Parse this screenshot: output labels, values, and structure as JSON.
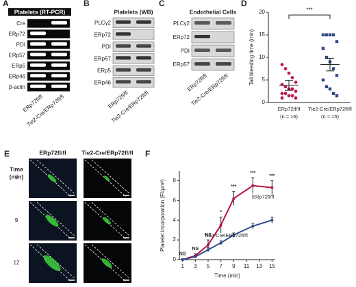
{
  "panels": {
    "A": {
      "label": "A",
      "title": "Platelets (RT-PCR)",
      "rows": [
        "Cre",
        "ERp72",
        "PDI",
        "ERp57",
        "ERp5",
        "ERp46",
        "β-actin"
      ],
      "columns": [
        "ERp72fl/fl",
        "Tie2-Cre/ERp72fl/fl"
      ]
    },
    "B": {
      "label": "B",
      "title": "Platelets (WB)",
      "rows": [
        "PLCγ2",
        "ERp72",
        "PDI",
        "ERp57",
        "ERp5",
        "ERp46"
      ],
      "columns": [
        "ERp72fl/fl",
        "Tie2-Cre/ERp72fl/fl"
      ]
    },
    "C": {
      "label": "C",
      "title": "Endothelial Cells",
      "rows": [
        "PLCγ2",
        "ERp72",
        "PDI",
        "ERp57"
      ],
      "columns": [
        "ERp72fl/fl",
        "Tie2-Cre/ERp72fl/fl"
      ]
    },
    "E": {
      "label": "E",
      "row_header": [
        "Time",
        "(min)"
      ],
      "columns": [
        "ERp72fl/fl",
        "Tie2-Cre/ERp72fl/fl"
      ],
      "rows": [
        "7",
        "9",
        "12"
      ]
    }
  },
  "chart_data": [
    {
      "label": "D",
      "type": "scatter",
      "ylabel": "Tail bleeding time (min)",
      "categories": [
        "ERp72fl/fl",
        "Tie2-Cre/ERp72fl/fl"
      ],
      "category_notes": [
        "(n = 16)",
        "(n = 15)"
      ],
      "series": [
        {
          "color": "#c2185b",
          "values": [
            8.4,
            7.5,
            6.5,
            5.5,
            4.5,
            4,
            3.5,
            3,
            3,
            2.5,
            2,
            2,
            1.5,
            1.5,
            1,
            1
          ]
        },
        {
          "color": "#2c4a86",
          "values": [
            15,
            15,
            15,
            15,
            13.5,
            12,
            10,
            9,
            7.5,
            6,
            5,
            3.5,
            3,
            2,
            1.5
          ]
        }
      ],
      "mean": [
        3.8,
        8.4
      ],
      "sem": [
        1.1,
        1.4
      ],
      "significance": "***",
      "ylim": [
        0,
        20
      ],
      "yticks": [
        0,
        5,
        10,
        15,
        20
      ]
    },
    {
      "label": "F",
      "type": "line",
      "xlabel": "Time (min)",
      "ylabel": "Platelet incorporation (FI/μm²)",
      "x": [
        1,
        3,
        5,
        7,
        9,
        12,
        15
      ],
      "series": [
        {
          "name": "ERp72fl/fl",
          "color": "#b5123d",
          "values": [
            0,
            0.4,
            1.5,
            3.5,
            6.2,
            7.5,
            7.3
          ],
          "errors": [
            0.1,
            0.2,
            0.5,
            0.8,
            0.7,
            0.8,
            0.7
          ]
        },
        {
          "name": "Tie2-Cre/ERp72fl/fl",
          "color": "#2b4c8c",
          "values": [
            0,
            0.3,
            1.0,
            1.7,
            2.5,
            3.4,
            4.0
          ],
          "errors": [
            0.1,
            0.1,
            0.2,
            0.2,
            0.2,
            0.3,
            0.3
          ]
        }
      ],
      "annotations": [
        {
          "x": 1,
          "text": "NS"
        },
        {
          "x": 3,
          "text": "NS"
        },
        {
          "x": 5,
          "text": "NS"
        },
        {
          "x": 7,
          "text": "*"
        },
        {
          "x": 9,
          "text": "***"
        },
        {
          "x": 12,
          "text": "***"
        },
        {
          "x": 15,
          "text": "***"
        }
      ],
      "xlim": [
        0.5,
        15.5
      ],
      "xticks": [
        1,
        3,
        5,
        7,
        9,
        11,
        13,
        15
      ],
      "ylim": [
        0,
        9
      ],
      "yticks": [
        0,
        2,
        4,
        6,
        8
      ]
    }
  ]
}
